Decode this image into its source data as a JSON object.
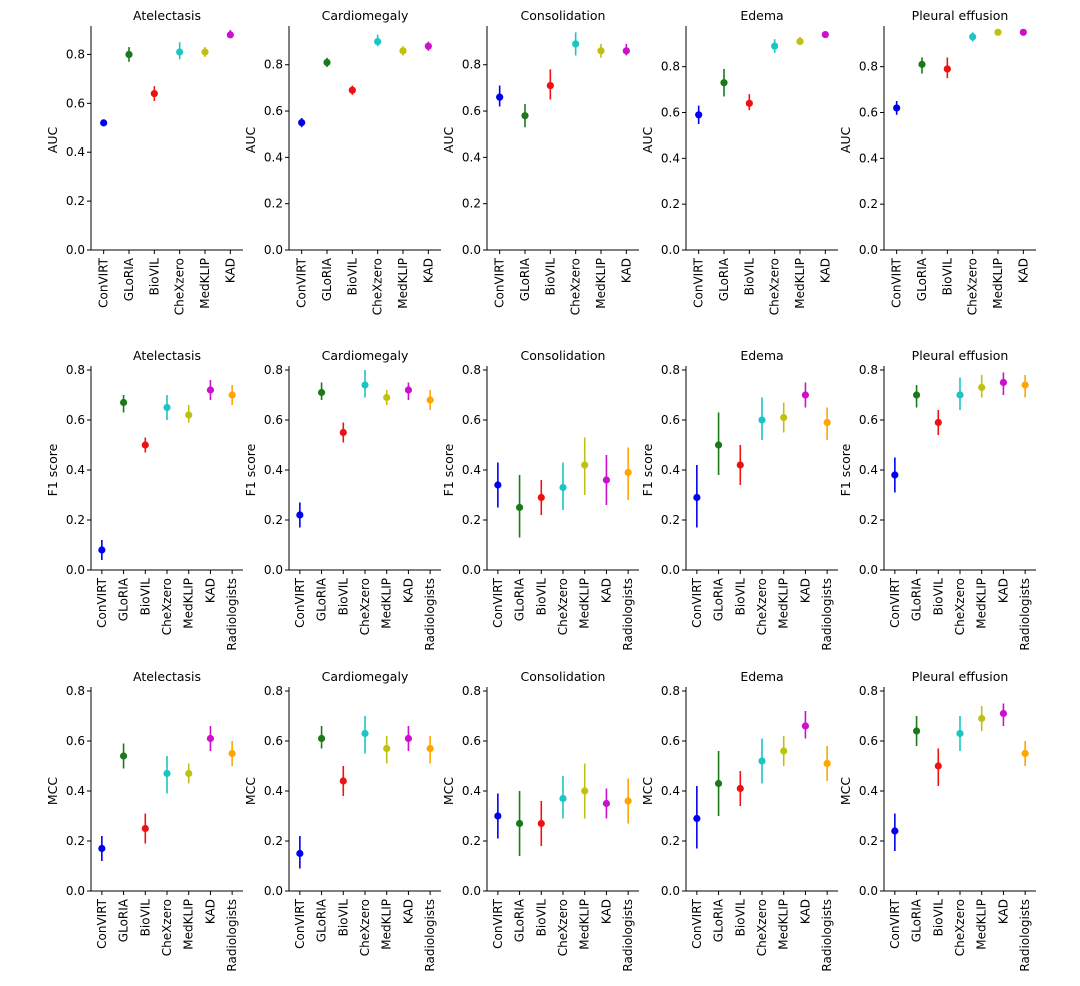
{
  "colors": {
    "ConVIRT": "#0000ee",
    "GLoRIA": "#1a7a1a",
    "BioVIL": "#ee1111",
    "CheXzero": "#1cc4c4",
    "MedKLIP": "#c0c010",
    "KAD": "#cc10cc",
    "Radiologists": "#ffa500"
  },
  "chart_data": [
    {
      "type": "scatter",
      "title": "Atelectasis",
      "ylabel": "AUC",
      "ylim": [
        0,
        0.9
      ],
      "yticks": [
        0.0,
        0.2,
        0.4,
        0.6,
        0.8
      ],
      "categories": [
        "ConVIRT",
        "GLoRIA",
        "BioVIL",
        "CheXzero",
        "MedKLIP",
        "KAD"
      ],
      "values": [
        0.52,
        0.8,
        0.64,
        0.81,
        0.81,
        0.88
      ],
      "lower": [
        0.51,
        0.77,
        0.61,
        0.78,
        0.79,
        0.87
      ],
      "upper": [
        0.53,
        0.83,
        0.67,
        0.85,
        0.83,
        0.9
      ]
    },
    {
      "type": "scatter",
      "title": "Cardiomegaly",
      "ylabel": "AUC",
      "ylim": [
        0,
        0.95
      ],
      "yticks": [
        0.0,
        0.2,
        0.4,
        0.6,
        0.8
      ],
      "categories": [
        "ConVIRT",
        "GLoRIA",
        "BioVIL",
        "CheXzero",
        "MedKLIP",
        "KAD"
      ],
      "values": [
        0.55,
        0.81,
        0.69,
        0.9,
        0.86,
        0.88
      ],
      "lower": [
        0.53,
        0.79,
        0.67,
        0.88,
        0.84,
        0.86
      ],
      "upper": [
        0.57,
        0.83,
        0.71,
        0.93,
        0.88,
        0.9
      ]
    },
    {
      "type": "scatter",
      "title": "Consolidation",
      "ylabel": "AUC",
      "ylim": [
        0,
        0.95
      ],
      "yticks": [
        0.0,
        0.2,
        0.4,
        0.6,
        0.8
      ],
      "categories": [
        "ConVIRT",
        "GLoRIA",
        "BioVIL",
        "CheXzero",
        "MedKLIP",
        "KAD"
      ],
      "values": [
        0.66,
        0.58,
        0.71,
        0.89,
        0.86,
        0.86
      ],
      "lower": [
        0.62,
        0.53,
        0.65,
        0.84,
        0.83,
        0.84
      ],
      "upper": [
        0.71,
        0.63,
        0.78,
        0.94,
        0.89,
        0.89
      ]
    },
    {
      "type": "scatter",
      "title": "Edema",
      "ylabel": "AUC",
      "ylim": [
        0,
        0.96
      ],
      "yticks": [
        0.0,
        0.2,
        0.4,
        0.6,
        0.8
      ],
      "categories": [
        "ConVIRT",
        "GLoRIA",
        "BioVIL",
        "CheXzero",
        "MedKLIP",
        "KAD"
      ],
      "values": [
        0.59,
        0.73,
        0.64,
        0.89,
        0.91,
        0.94
      ],
      "lower": [
        0.55,
        0.67,
        0.61,
        0.86,
        0.9,
        0.93
      ],
      "upper": [
        0.63,
        0.79,
        0.68,
        0.92,
        0.93,
        0.95
      ]
    },
    {
      "type": "scatter",
      "title": "Pleural effusion",
      "ylabel": "AUC",
      "ylim": [
        0,
        0.96
      ],
      "yticks": [
        0.0,
        0.2,
        0.4,
        0.6,
        0.8
      ],
      "categories": [
        "ConVIRT",
        "GLoRIA",
        "BioVIL",
        "CheXzero",
        "MedKLIP",
        "KAD"
      ],
      "values": [
        0.62,
        0.81,
        0.79,
        0.93,
        0.95,
        0.95
      ],
      "lower": [
        0.59,
        0.77,
        0.75,
        0.91,
        0.94,
        0.94
      ],
      "upper": [
        0.65,
        0.84,
        0.84,
        0.95,
        0.96,
        0.96
      ]
    },
    {
      "type": "scatter",
      "title": "Atelectasis",
      "ylabel": "F1 score",
      "ylim": [
        0,
        0.8
      ],
      "yticks": [
        0.0,
        0.2,
        0.4,
        0.6,
        0.8
      ],
      "categories": [
        "ConVIRT",
        "GLoRIA",
        "BioVIL",
        "CheXzero",
        "MedKLIP",
        "KAD",
        "Radiologists"
      ],
      "values": [
        0.08,
        0.67,
        0.5,
        0.65,
        0.62,
        0.72,
        0.7
      ],
      "lower": [
        0.04,
        0.63,
        0.47,
        0.6,
        0.59,
        0.68,
        0.66
      ],
      "upper": [
        0.12,
        0.7,
        0.53,
        0.7,
        0.66,
        0.76,
        0.74
      ]
    },
    {
      "type": "scatter",
      "title": "Cardiomegaly",
      "ylabel": "F1 score",
      "ylim": [
        0,
        0.8
      ],
      "yticks": [
        0.0,
        0.2,
        0.4,
        0.6,
        0.8
      ],
      "categories": [
        "ConVIRT",
        "GLoRIA",
        "BioVIL",
        "CheXzero",
        "MedKLIP",
        "KAD",
        "Radiologists"
      ],
      "values": [
        0.22,
        0.71,
        0.55,
        0.74,
        0.69,
        0.72,
        0.68
      ],
      "lower": [
        0.17,
        0.68,
        0.51,
        0.69,
        0.66,
        0.68,
        0.64
      ],
      "upper": [
        0.27,
        0.75,
        0.59,
        0.8,
        0.72,
        0.75,
        0.72
      ]
    },
    {
      "type": "scatter",
      "title": "Consolidation",
      "ylabel": "F1 score",
      "ylim": [
        0,
        0.8
      ],
      "yticks": [
        0.0,
        0.2,
        0.4,
        0.6,
        0.8
      ],
      "categories": [
        "ConVIRT",
        "GLoRIA",
        "BioVIL",
        "CheXzero",
        "MedKLIP",
        "KAD",
        "Radiologists"
      ],
      "values": [
        0.34,
        0.25,
        0.29,
        0.33,
        0.42,
        0.36,
        0.39
      ],
      "lower": [
        0.25,
        0.13,
        0.22,
        0.24,
        0.3,
        0.26,
        0.28
      ],
      "upper": [
        0.43,
        0.38,
        0.36,
        0.43,
        0.53,
        0.46,
        0.49
      ]
    },
    {
      "type": "scatter",
      "title": "Edema",
      "ylabel": "F1 score",
      "ylim": [
        0,
        0.8
      ],
      "yticks": [
        0.0,
        0.2,
        0.4,
        0.6,
        0.8
      ],
      "categories": [
        "ConVIRT",
        "GLoRIA",
        "BioVIL",
        "CheXzero",
        "MedKLIP",
        "KAD",
        "Radiologists"
      ],
      "values": [
        0.29,
        0.5,
        0.42,
        0.6,
        0.61,
        0.7,
        0.59
      ],
      "lower": [
        0.17,
        0.38,
        0.34,
        0.52,
        0.55,
        0.65,
        0.52
      ],
      "upper": [
        0.42,
        0.63,
        0.5,
        0.69,
        0.67,
        0.75,
        0.65
      ]
    },
    {
      "type": "scatter",
      "title": "Pleural effusion",
      "ylabel": "F1 score",
      "ylim": [
        0,
        0.8
      ],
      "yticks": [
        0.0,
        0.2,
        0.4,
        0.6,
        0.8
      ],
      "categories": [
        "ConVIRT",
        "GLoRIA",
        "BioVIL",
        "CheXzero",
        "MedKLIP",
        "KAD",
        "Radiologists"
      ],
      "values": [
        0.38,
        0.7,
        0.59,
        0.7,
        0.73,
        0.75,
        0.74
      ],
      "lower": [
        0.31,
        0.65,
        0.54,
        0.64,
        0.69,
        0.7,
        0.69
      ],
      "upper": [
        0.45,
        0.74,
        0.64,
        0.77,
        0.78,
        0.79,
        0.78
      ]
    },
    {
      "type": "scatter",
      "title": "Atelectasis",
      "ylabel": "MCC",
      "ylim": [
        0,
        0.8
      ],
      "yticks": [
        0.0,
        0.2,
        0.4,
        0.6,
        0.8
      ],
      "categories": [
        "ConVIRT",
        "GLoRIA",
        "BioVIL",
        "CheXzero",
        "MedKLIP",
        "KAD",
        "Radiologists"
      ],
      "values": [
        0.17,
        0.54,
        0.25,
        0.47,
        0.47,
        0.61,
        0.55
      ],
      "lower": [
        0.12,
        0.49,
        0.19,
        0.39,
        0.43,
        0.56,
        0.5
      ],
      "upper": [
        0.22,
        0.59,
        0.31,
        0.54,
        0.51,
        0.66,
        0.6
      ]
    },
    {
      "type": "scatter",
      "title": "Cardiomegaly",
      "ylabel": "MCC",
      "ylim": [
        0,
        0.8
      ],
      "yticks": [
        0.0,
        0.2,
        0.4,
        0.6,
        0.8
      ],
      "categories": [
        "ConVIRT",
        "GLoRIA",
        "BioVIL",
        "CheXzero",
        "MedKLIP",
        "KAD",
        "Radiologists"
      ],
      "values": [
        0.15,
        0.61,
        0.44,
        0.63,
        0.57,
        0.61,
        0.57
      ],
      "lower": [
        0.09,
        0.57,
        0.38,
        0.55,
        0.51,
        0.56,
        0.51
      ],
      "upper": [
        0.22,
        0.66,
        0.5,
        0.7,
        0.62,
        0.66,
        0.62
      ]
    },
    {
      "type": "scatter",
      "title": "Consolidation",
      "ylabel": "MCC",
      "ylim": [
        0,
        0.8
      ],
      "yticks": [
        0.0,
        0.2,
        0.4,
        0.6,
        0.8
      ],
      "categories": [
        "ConVIRT",
        "GLoRIA",
        "BioVIL",
        "CheXzero",
        "MedKLIP",
        "KAD",
        "Radiologists"
      ],
      "values": [
        0.3,
        0.27,
        0.27,
        0.37,
        0.4,
        0.35,
        0.36
      ],
      "lower": [
        0.21,
        0.14,
        0.18,
        0.29,
        0.29,
        0.29,
        0.27
      ],
      "upper": [
        0.39,
        0.4,
        0.36,
        0.46,
        0.51,
        0.41,
        0.45
      ]
    },
    {
      "type": "scatter",
      "title": "Edema",
      "ylabel": "MCC",
      "ylim": [
        0,
        0.8
      ],
      "yticks": [
        0.0,
        0.2,
        0.4,
        0.6,
        0.8
      ],
      "categories": [
        "ConVIRT",
        "GLoRIA",
        "BioVIL",
        "CheXzero",
        "MedKLIP",
        "KAD",
        "Radiologists"
      ],
      "values": [
        0.29,
        0.43,
        0.41,
        0.52,
        0.56,
        0.66,
        0.51
      ],
      "lower": [
        0.17,
        0.3,
        0.34,
        0.43,
        0.5,
        0.61,
        0.44
      ],
      "upper": [
        0.42,
        0.56,
        0.48,
        0.61,
        0.62,
        0.72,
        0.58
      ]
    },
    {
      "type": "scatter",
      "title": "Pleural effusion",
      "ylabel": "MCC",
      "ylim": [
        0,
        0.8
      ],
      "yticks": [
        0.0,
        0.2,
        0.4,
        0.6,
        0.8
      ],
      "categories": [
        "ConVIRT",
        "GLoRIA",
        "BioVIL",
        "CheXzero",
        "MedKLIP",
        "KAD",
        "Radiologists"
      ],
      "values": [
        0.24,
        0.64,
        0.5,
        0.63,
        0.69,
        0.71,
        0.55
      ],
      "lower": [
        0.16,
        0.58,
        0.42,
        0.56,
        0.64,
        0.66,
        0.5
      ],
      "upper": [
        0.31,
        0.7,
        0.57,
        0.7,
        0.74,
        0.75,
        0.6
      ]
    }
  ]
}
